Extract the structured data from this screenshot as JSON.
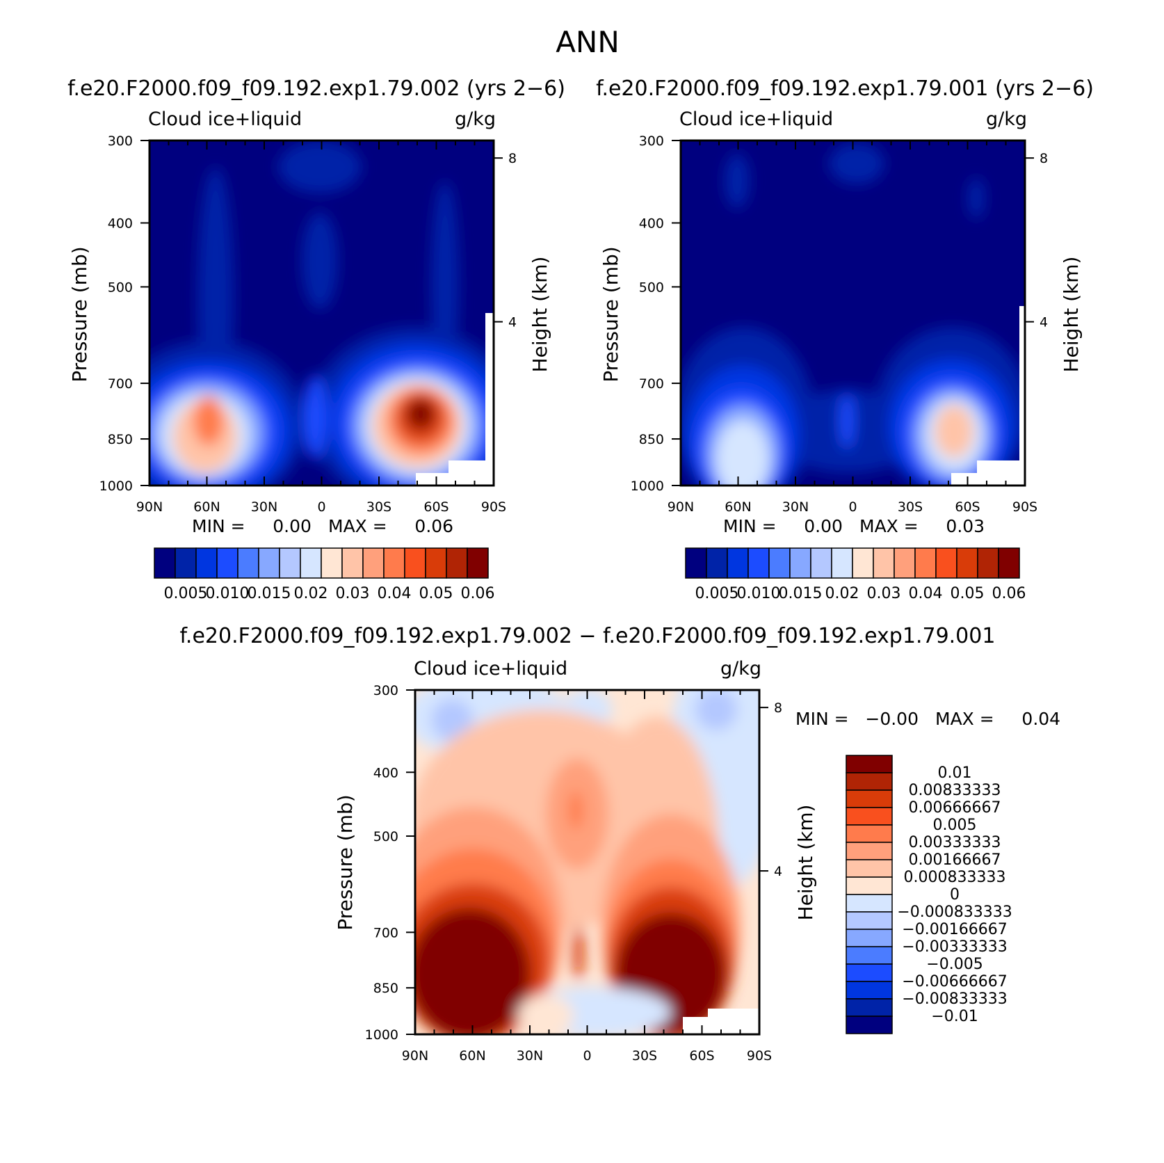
{
  "figure": {
    "title": "ANN",
    "panel_titles": [
      "f.e20.F2000.f09_f09.192.exp1.79.002 (yrs 2−6)",
      "f.e20.F2000.f09_f09.192.exp1.79.001 (yrs 2−6)",
      "f.e20.F2000.f09_f09.192.exp1.79.002 − f.e20.F2000.f09_f09.192.exp1.79.001"
    ]
  },
  "chart_data": [
    {
      "type": "heatmap",
      "panel": "top-left",
      "variable_label": "Cloud  ice+liquid",
      "units_label": "g/kg",
      "xlabel": "",
      "ylabel": "Pressure (mb)",
      "y2label": "Height (km)",
      "x_ticks": [
        "90N",
        "60N",
        "30N",
        "0",
        "30S",
        "60S",
        "90S"
      ],
      "y_ticks": [
        "300",
        "400",
        "500",
        "700",
        "850",
        "1000"
      ],
      "y2_ticks": [
        "8",
        "4"
      ],
      "min_text": "MIN =     0.00",
      "max_text": "MAX =     0.06",
      "colorbar_labels": [
        "0.005",
        "0.010",
        "0.015",
        "0.02",
        "0.03",
        "0.04",
        "0.05",
        "0.06"
      ],
      "colors": [
        "#00007f",
        "#0023a8",
        "#0036e0",
        "#1c4cff",
        "#4b7cff",
        "#87a8ff",
        "#b4c8ff",
        "#d6e6ff",
        "#ffe6d4",
        "#ffc4a8",
        "#ffa07c",
        "#ff7b4c",
        "#f9501e",
        "#d93c09",
        "#b02405",
        "#800000"
      ],
      "features": [
        {
          "lat": -58,
          "pressure": 860,
          "value": 0.06
        },
        {
          "lat": 60,
          "pressure": 860,
          "value": 0.04
        },
        {
          "lat": 5,
          "pressure": 840,
          "value": 0.015
        }
      ]
    },
    {
      "type": "heatmap",
      "panel": "top-right",
      "variable_label": "Cloud  ice+liquid",
      "units_label": "g/kg",
      "xlabel": "",
      "ylabel": "Pressure (mb)",
      "y2label": "Height (km)",
      "x_ticks": [
        "90N",
        "60N",
        "30N",
        "0",
        "30S",
        "60S",
        "90S"
      ],
      "y_ticks": [
        "300",
        "400",
        "500",
        "700",
        "850",
        "1000"
      ],
      "y2_ticks": [
        "8",
        "4"
      ],
      "min_text": "MIN =     0.00",
      "max_text": "MAX =     0.03",
      "colorbar_labels": [
        "0.005",
        "0.010",
        "0.015",
        "0.02",
        "0.03",
        "0.04",
        "0.05",
        "0.06"
      ],
      "colors": [
        "#00007f",
        "#0023a8",
        "#0036e0",
        "#1c4cff",
        "#4b7cff",
        "#87a8ff",
        "#b4c8ff",
        "#d6e6ff",
        "#ffe6d4",
        "#ffc4a8",
        "#ffa07c",
        "#ff7b4c",
        "#f9501e",
        "#d93c09",
        "#b02405",
        "#800000"
      ],
      "features": [
        {
          "lat": -58,
          "pressure": 870,
          "value": 0.03
        },
        {
          "lat": 57,
          "pressure": 900,
          "value": 0.02
        }
      ]
    },
    {
      "type": "heatmap",
      "panel": "bottom",
      "variable_label": "Cloud  ice+liquid",
      "units_label": "g/kg",
      "xlabel": "",
      "ylabel": "Pressure (mb)",
      "y2label": "Height (km)",
      "x_ticks": [
        "90N",
        "60N",
        "30N",
        "0",
        "30S",
        "60S",
        "90S"
      ],
      "y_ticks": [
        "300",
        "400",
        "500",
        "700",
        "850",
        "1000"
      ],
      "y2_ticks": [
        "8",
        "4"
      ],
      "min_text": "MIN =   −0.00",
      "max_text": "MAX =     0.04",
      "colorbar_labels": [
        "0.01",
        "0.00833333",
        "0.00666667",
        "0.005",
        "0.00333333",
        "0.00166667",
        "0.000833333",
        "0",
        "−0.000833333",
        "−0.00166667",
        "−0.00333333",
        "−0.005",
        "−0.00666667",
        "−0.00833333",
        "−0.01"
      ],
      "colors": [
        "#800000",
        "#b02405",
        "#d93c09",
        "#f9501e",
        "#ff7b4c",
        "#ffa07c",
        "#ffc4a8",
        "#ffe6d4",
        "#d6e6ff",
        "#b4c8ff",
        "#87a8ff",
        "#4b7cff",
        "#1c4cff",
        "#0036e0",
        "#0023a8",
        "#00007f"
      ],
      "features": [
        {
          "lat": 60,
          "pressure": 880,
          "value": 0.01
        },
        {
          "lat": -55,
          "pressure": 880,
          "value": 0.01
        }
      ]
    }
  ]
}
